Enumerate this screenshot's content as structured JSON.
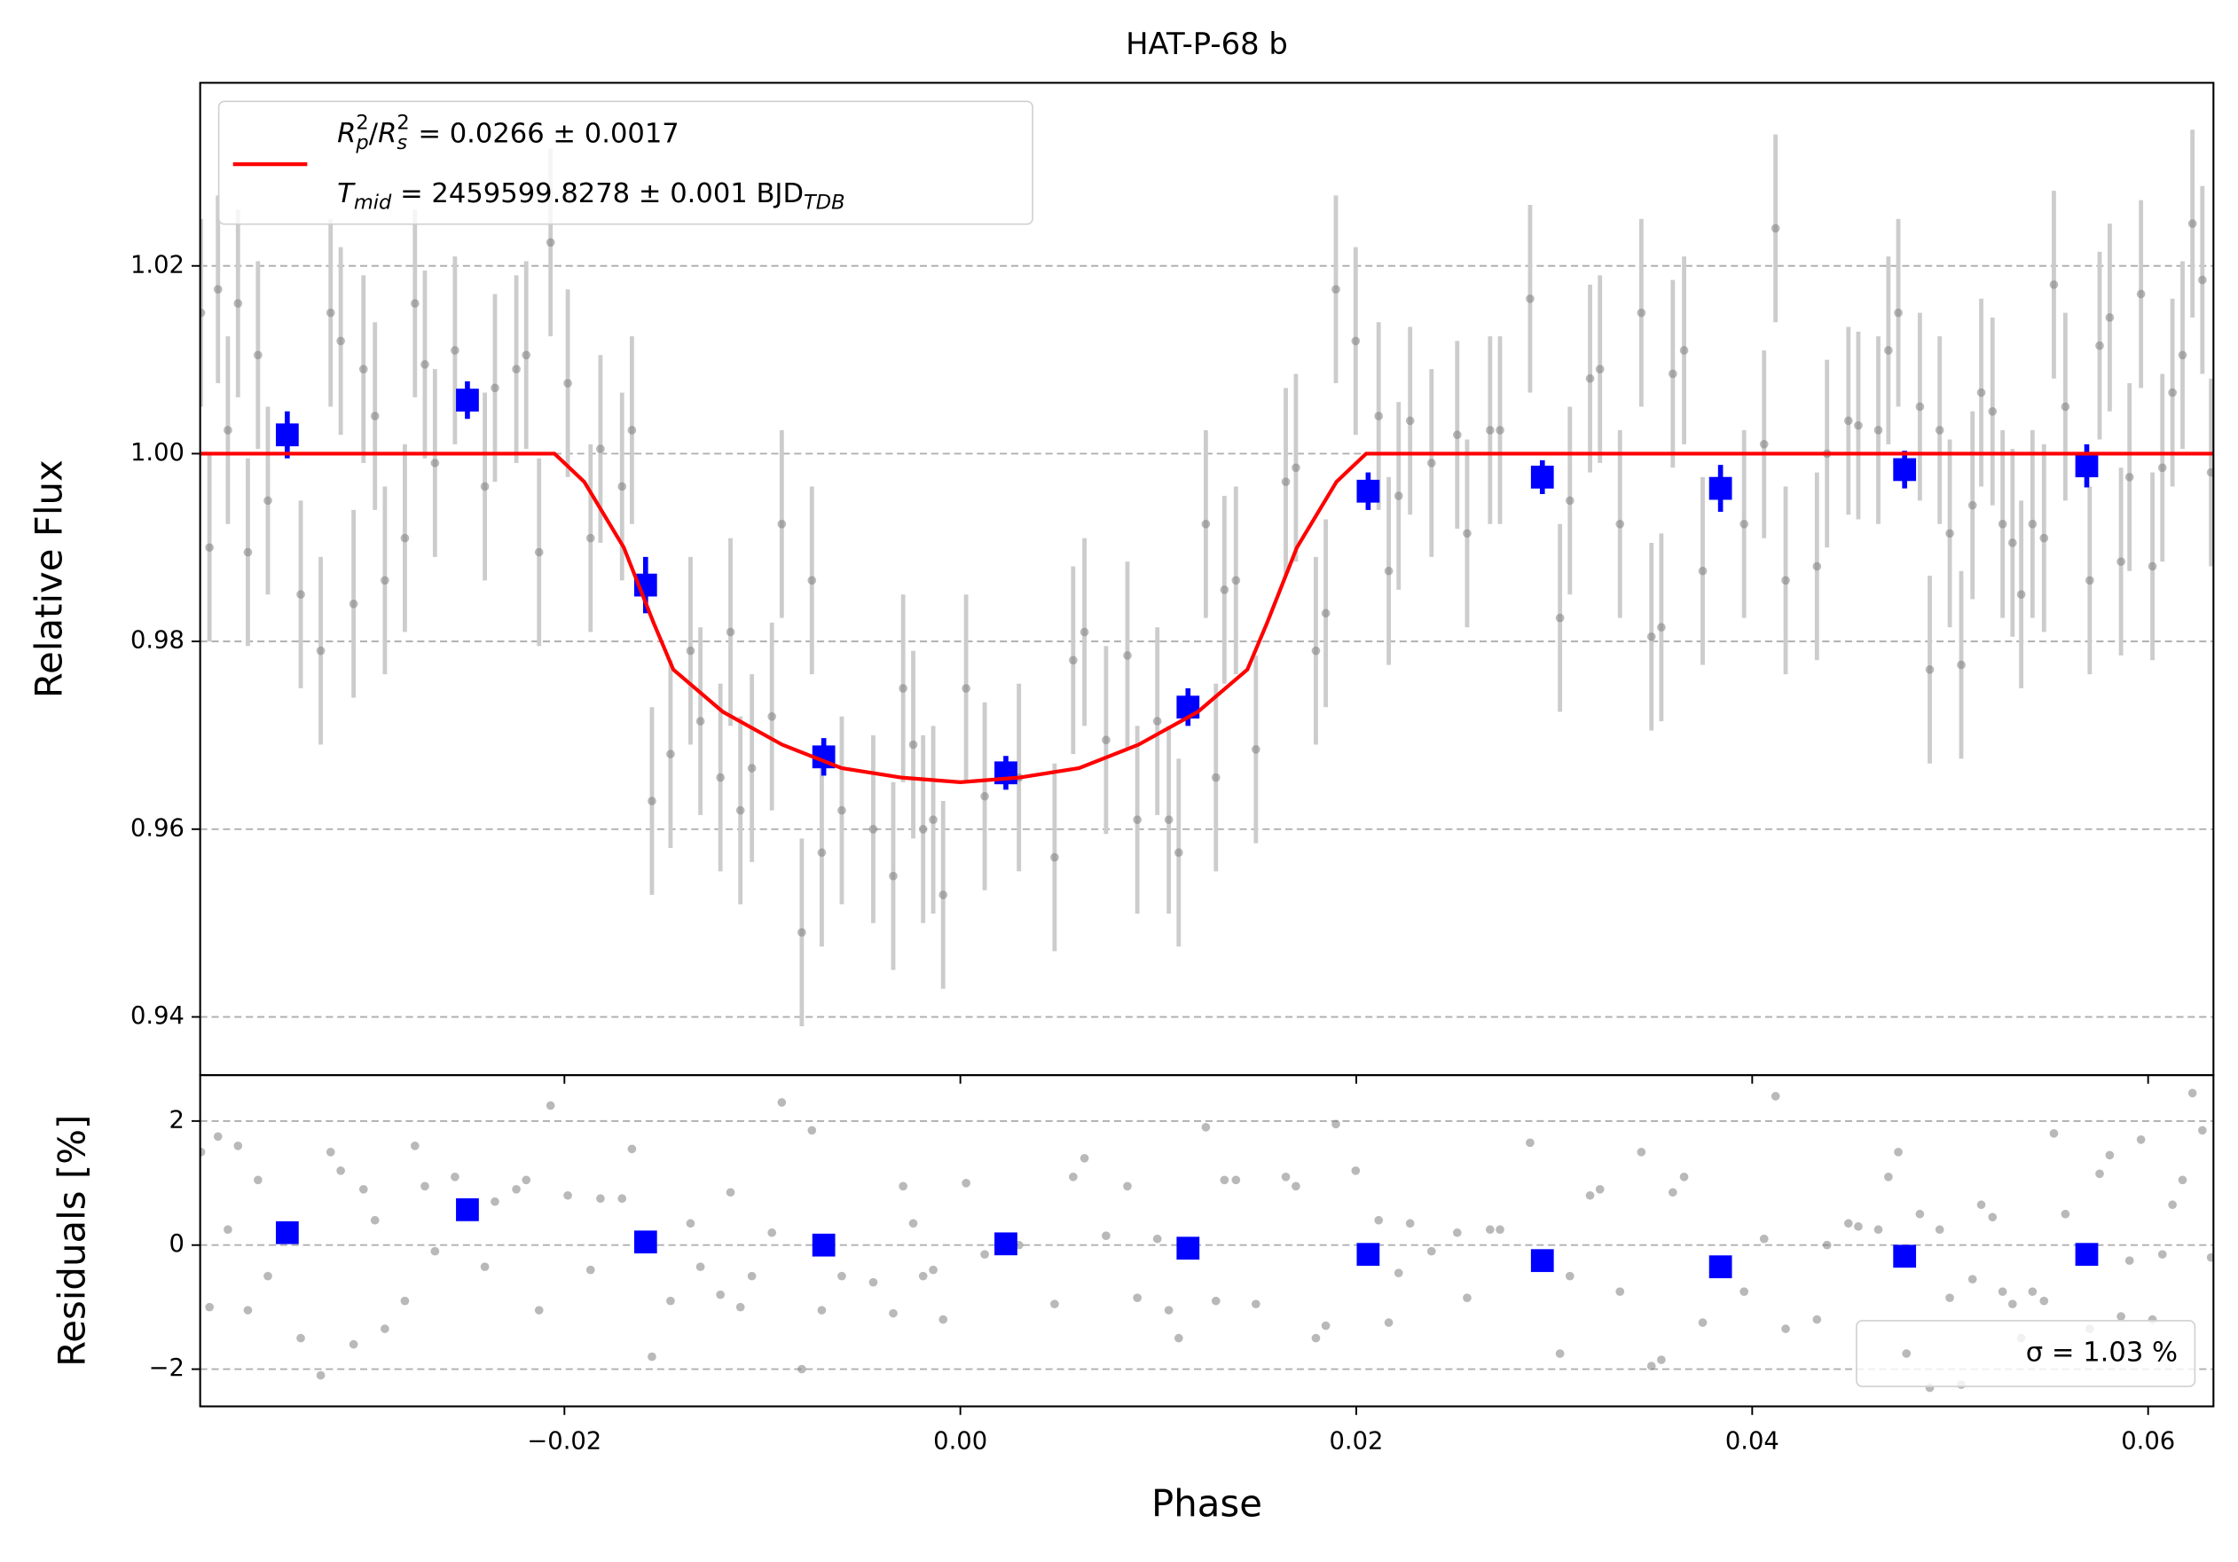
{
  "chart_data": [
    {
      "type": "scatter",
      "title": "HAT-P-68 b",
      "ylabel": "Relative Flux",
      "xlim": [
        -0.0384,
        0.0633
      ],
      "xticks": [
        {
          "value": -0.02,
          "label": "−0.02"
        },
        {
          "value": 0,
          "label": "0.00"
        },
        0.02,
        0.04,
        0.06
      ],
      "ylim": [
        0.9338,
        1.0395
      ],
      "yticks": [
        0.94,
        0.96,
        0.98,
        {
          "value": 1.0,
          "label": "1.00"
        },
        1.02
      ],
      "grid": true,
      "legend": "upper left",
      "series": [
        {
          "color": "#808080",
          "error_color": "#cccccc",
          "error": 0.01,
          "x": [
            -0.03836,
            -0.03793,
            -0.0375,
            -0.037,
            -0.03649,
            -0.03599,
            -0.03548,
            -0.03498,
            -0.03332,
            -0.03231,
            -0.03181,
            -0.0313,
            -0.03065,
            -0.03015,
            -0.02957,
            -0.02907,
            -0.02806,
            -0.02755,
            -0.02705,
            -0.02654,
            -0.02553,
            -0.02402,
            -0.02351,
            -0.02243,
            -0.02193,
            -0.02128,
            -0.0207,
            -0.01983,
            -0.01868,
            -0.01818,
            -0.01709,
            -0.01659,
            -0.01558,
            -0.01464,
            -0.01363,
            -0.01313,
            -0.01212,
            -0.01161,
            -0.01111,
            -0.01053,
            -0.00952,
            -0.00902,
            -0.00801,
            -0.0075,
            -0.007,
            -0.00599,
            -0.0044,
            -0.00339,
            -0.00289,
            -0.00238,
            -0.00188,
            -0.00137,
            -0.00087,
            0.00029,
            0.00123,
            0.00296,
            0.00476,
            0.0057,
            0.00627,
            0.00736,
            0.00844,
            0.00894,
            0.00995,
            0.01053,
            0.01103,
            0.0124,
            0.01291,
            0.01334,
            0.01392,
            0.01493,
            0.01644,
            0.01695,
            0.01796,
            0.01846,
            0.01897,
            0.01997,
            0.02113,
            0.02164,
            0.02214,
            0.02272,
            0.0238,
            0.0251,
            0.0256,
            0.02676,
            0.02726,
            0.02878,
            0.03029,
            0.03079,
            0.03181,
            0.03231,
            0.03332,
            0.0344,
            0.03491,
            0.03541,
            0.03599,
            0.03656,
            0.0375,
            0.03959,
            0.0406,
            0.04118,
            0.04169,
            0.04327,
            0.04378,
            0.04486,
            0.04536,
            0.04637,
            0.04688,
            0.04738,
            0.04847,
            0.04897,
            0.04947,
            0.04998,
            0.05056,
            0.05113,
            0.05157,
            0.05214,
            0.05265,
            0.05315,
            0.05359,
            0.05416,
            0.05474,
            0.05524,
            0.05582,
            0.05705,
            0.05755,
            0.05806,
            0.05863,
            0.05906,
            0.05964,
            0.06022,
            0.06072,
            0.06123,
            0.06174,
            0.06224,
            0.06274,
            0.06318
          ],
          "values": [
            1.015,
            0.99,
            1.0175,
            1.0025,
            1.016,
            0.9895,
            1.0105,
            0.995,
            0.985,
            0.979,
            1.015,
            1.012,
            0.984,
            1.009,
            1.004,
            0.9865,
            0.991,
            1.016,
            1.0095,
            0.999,
            1.011,
            0.9965,
            1.007,
            1.009,
            1.0105,
            0.9895,
            1.0225,
            1.0075,
            0.991,
            1.0005,
            0.9965,
            1.0025,
            0.963,
            0.968,
            0.979,
            0.9715,
            0.9655,
            0.981,
            0.962,
            0.9665,
            0.972,
            0.9925,
            0.949,
            0.9865,
            0.9575,
            0.962,
            0.96,
            0.955,
            0.975,
            0.969,
            0.96,
            0.961,
            0.953,
            0.975,
            0.9635,
            0.9655,
            0.957,
            0.978,
            0.981,
            0.9695,
            0.9785,
            0.961,
            0.9715,
            0.961,
            0.9575,
            0.9925,
            0.9655,
            0.9855,
            0.9865,
            0.9685,
            0.997,
            0.9985,
            0.979,
            0.983,
            1.0175,
            1.012,
            1.004,
            0.9875,
            0.9955,
            1.0035,
            0.999,
            1.002,
            0.9915,
            1.0025,
            1.0025,
            1.0165,
            0.9825,
            0.995,
            1.008,
            1.009,
            0.9925,
            1.015,
            0.9805,
            0.9815,
            1.0085,
            1.011,
            0.9875,
            0.9925,
            1.001,
            1.024,
            0.9865,
            0.988,
            1.0,
            1.0035,
            1.003,
            1.0025,
            1.011,
            1.015,
            1.005,
            0.977,
            1.0025,
            0.9915,
            0.9775,
            0.9945,
            1.0065,
            1.0045,
            0.9925,
            0.9905,
            0.985,
            0.9925,
            0.991,
            1.018,
            1.005,
            0.9865,
            1.0115,
            1.0145,
            0.9885,
            0.9975,
            1.017,
            0.988,
            0.9985,
            1.0065,
            1.0105,
            1.0245,
            1.0185,
            0.998
          ]
        },
        {
          "color": "#0000ff",
          "marker": "square",
          "x": [
            -0.034,
            -0.0249,
            -0.0159,
            -0.0069,
            0.0023,
            0.0115,
            0.0206,
            0.0294,
            0.0384,
            0.0477,
            0.0569
          ],
          "values": [
            1.002,
            1.0057,
            0.986,
            0.9677,
            0.966,
            0.973,
            0.996,
            0.9975,
            0.9963,
            0.9983,
            0.9987
          ],
          "errors": [
            0.0025,
            0.002,
            0.003,
            0.002,
            0.0018,
            0.002,
            0.002,
            0.0018,
            0.0025,
            0.002,
            0.0023
          ]
        },
        {
          "type": "line",
          "color": "#ff0000",
          "name": [
            [
              "R",
              "p",
              "2",
              "/",
              "R",
              "s",
              "2",
              " = 0.0266 ± 0.0017"
            ],
            [
              "T",
              "mid",
              " = 2459599.8278 ± 0.001 BJD",
              "TDB"
            ]
          ],
          "x": [
            -0.0384,
            -0.0205,
            -0.019,
            -0.017,
            -0.0155,
            -0.0145,
            -0.012,
            -0.009,
            -0.006,
            -0.003,
            0,
            0.003,
            0.006,
            0.009,
            0.012,
            0.0145,
            0.0155,
            0.017,
            0.019,
            0.0205,
            0.0633
          ],
          "values": [
            1,
            1,
            0.997,
            0.99,
            0.982,
            0.977,
            0.9725,
            0.969,
            0.9665,
            0.9655,
            0.965,
            0.9655,
            0.9665,
            0.969,
            0.9725,
            0.977,
            0.982,
            0.99,
            0.997,
            1,
            1
          ]
        }
      ]
    },
    {
      "type": "scatter",
      "ylabel": "Residuals [%]",
      "xlabel": "Phase",
      "xlim": [
        -0.0384,
        0.0633
      ],
      "xticks": [
        {
          "value": -0.02,
          "label": "−0.02"
        },
        {
          "value": 0,
          "label": "0.00"
        },
        0.02,
        0.04,
        0.06
      ],
      "ylim": [
        -2.6,
        2.74
      ],
      "yticks": [
        {
          "value": -2,
          "label": "−2"
        },
        0,
        2
      ],
      "grid": true,
      "legend": "lower right",
      "series": [
        {
          "color": "#808080",
          "name": "σ = 1.03 %",
          "x": [
            -0.03836,
            -0.03793,
            -0.0375,
            -0.037,
            -0.03649,
            -0.03599,
            -0.03548,
            -0.03498,
            -0.03332,
            -0.03231,
            -0.03181,
            -0.0313,
            -0.03065,
            -0.03015,
            -0.02957,
            -0.02907,
            -0.02806,
            -0.02755,
            -0.02705,
            -0.02654,
            -0.02553,
            -0.02402,
            -0.02351,
            -0.02243,
            -0.02193,
            -0.02128,
            -0.0207,
            -0.01983,
            -0.01868,
            -0.01818,
            -0.01709,
            -0.01659,
            -0.01558,
            -0.01464,
            -0.01363,
            -0.01313,
            -0.01212,
            -0.01161,
            -0.01111,
            -0.01053,
            -0.00952,
            -0.00902,
            -0.00801,
            -0.0075,
            -0.007,
            -0.00599,
            -0.0044,
            -0.00339,
            -0.00289,
            -0.00238,
            -0.00188,
            -0.00137,
            -0.00087,
            0.00029,
            0.00123,
            0.00296,
            0.00476,
            0.0057,
            0.00627,
            0.00736,
            0.00844,
            0.00894,
            0.00995,
            0.01053,
            0.01103,
            0.0124,
            0.01291,
            0.01334,
            0.01392,
            0.01493,
            0.01644,
            0.01695,
            0.01796,
            0.01846,
            0.01897,
            0.01997,
            0.02113,
            0.02164,
            0.02214,
            0.02272,
            0.0238,
            0.0251,
            0.0256,
            0.02676,
            0.02726,
            0.02878,
            0.03029,
            0.03079,
            0.03181,
            0.03231,
            0.03332,
            0.0344,
            0.03491,
            0.03541,
            0.03599,
            0.03656,
            0.0375,
            0.03959,
            0.0406,
            0.04118,
            0.04169,
            0.04327,
            0.04378,
            0.04486,
            0.04536,
            0.04637,
            0.04688,
            0.04738,
            0.04847,
            0.04897,
            0.04947,
            0.04998,
            0.05056,
            0.05113,
            0.05157,
            0.05214,
            0.05265,
            0.05315,
            0.05359,
            0.05416,
            0.05474,
            0.05524,
            0.05582,
            0.05705,
            0.05755,
            0.05806,
            0.05863,
            0.05906,
            0.05964,
            0.06022,
            0.06072,
            0.06123,
            0.06174,
            0.06224,
            0.06274,
            0.06318
          ],
          "values": [
            1.5,
            -1.0,
            1.75,
            0.25,
            1.6,
            -1.05,
            1.05,
            -0.5,
            -1.5,
            -2.1,
            1.5,
            1.2,
            -1.6,
            0.9,
            0.4,
            -1.35,
            -0.9,
            1.6,
            0.95,
            -0.1,
            1.1,
            -0.35,
            0.7,
            0.9,
            1.05,
            -1.05,
            2.25,
            0.8,
            -0.4,
            0.75,
            0.75,
            1.55,
            -1.8,
            -0.9,
            0.35,
            -0.35,
            -0.8,
            0.85,
            -1.0,
            -0.5,
            0.2,
            2.3,
            -2.0,
            1.85,
            -1.05,
            -0.5,
            -0.6,
            -1.1,
            0.95,
            0.35,
            -0.5,
            -0.4,
            -1.2,
            1.0,
            -0.15,
            0,
            -0.95,
            1.1,
            1.4,
            0.15,
            0.95,
            -0.85,
            0.1,
            -1.05,
            -1.5,
            1.9,
            -0.9,
            1.05,
            1.05,
            -0.95,
            1.1,
            0.95,
            -1.5,
            -1.3,
            1.95,
            1.2,
            0.4,
            -1.25,
            -0.45,
            0.35,
            -0.1,
            0.2,
            -0.85,
            0.25,
            0.25,
            1.65,
            -1.75,
            -0.5,
            0.8,
            0.9,
            -0.75,
            1.5,
            -1.95,
            -1.85,
            0.85,
            1.1,
            -1.25,
            -0.75,
            0.1,
            2.4,
            -1.35,
            -1.2,
            0,
            0.35,
            0.3,
            0.25,
            1.1,
            1.5,
            0.5,
            -2.3,
            0.25,
            -0.85,
            -2.25,
            -0.55,
            0.65,
            0.45,
            -0.75,
            -0.95,
            -1.5,
            -0.75,
            -0.9,
            1.8,
            0.5,
            -1.35,
            1.15,
            1.45,
            -1.15,
            -0.25,
            1.7,
            -1.2,
            -0.15,
            0.65,
            1.05,
            2.45,
            1.85,
            -0.2
          ]
        },
        {
          "color": "#0000ff",
          "marker": "square",
          "x": [
            -0.034,
            -0.0249,
            -0.0159,
            -0.0069,
            0.0023,
            0.0115,
            0.0206,
            0.0294,
            0.0384,
            0.0477,
            0.0569
          ],
          "values": [
            0.2,
            0.57,
            0.05,
            0,
            0.02,
            -0.05,
            -0.15,
            -0.25,
            -0.35,
            -0.18,
            -0.15
          ]
        }
      ]
    }
  ]
}
